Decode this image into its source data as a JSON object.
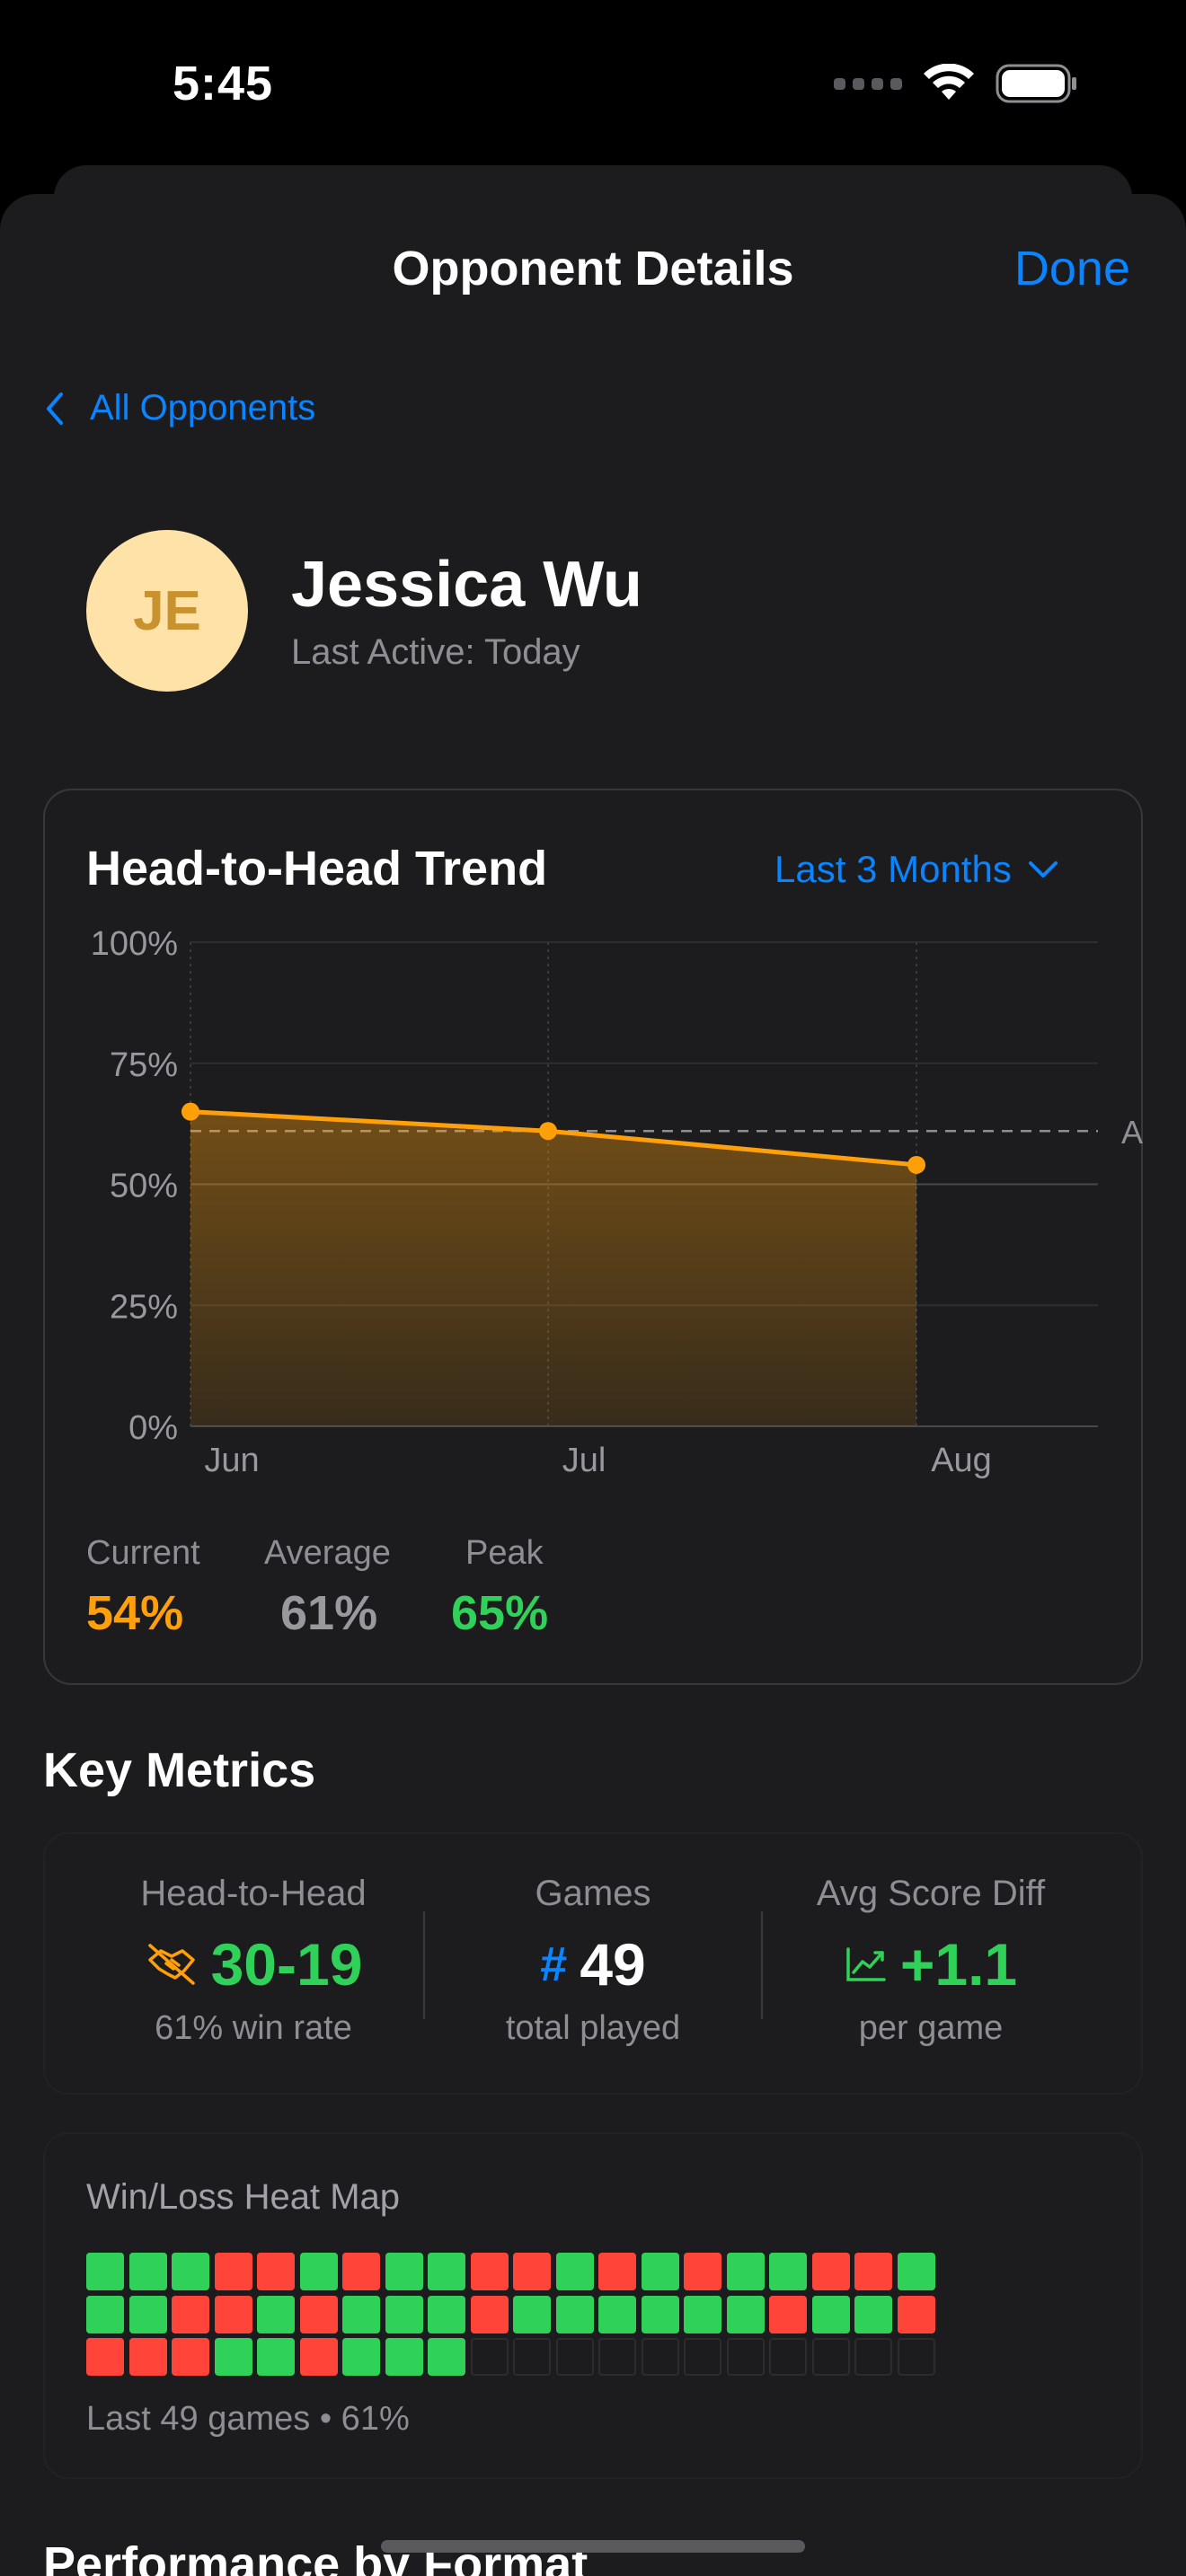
{
  "status": {
    "time": "5:45"
  },
  "nav": {
    "title": "Opponent Details",
    "done": "Done",
    "back": "All Opponents"
  },
  "profile": {
    "initials": "JE",
    "name": "Jessica Wu",
    "last_active": "Last Active: Today"
  },
  "trend": {
    "title": "Head-to-Head Trend",
    "range": "Last 3 Months",
    "avg_line_label": "A",
    "stats": [
      {
        "label": "Current",
        "value": "54%",
        "color": "#ff9f0a"
      },
      {
        "label": "Average",
        "value": "61%",
        "color": "#98989d"
      },
      {
        "label": "Peak",
        "value": "65%",
        "color": "#30d158"
      }
    ]
  },
  "chart_data": {
    "type": "area",
    "title": "Head-to-Head Trend",
    "xlabel": "",
    "ylabel": "",
    "x": [
      "Jun",
      "Jul",
      "Aug"
    ],
    "y_ticks": [
      "100%",
      "75%",
      "50%",
      "25%",
      "0%"
    ],
    "ylim": [
      0,
      100
    ],
    "series": [
      {
        "values": [
          65,
          61,
          54
        ],
        "color": "#ff9f0a"
      }
    ],
    "average": 61,
    "grid": true
  },
  "metrics": {
    "title": "Key Metrics",
    "items": [
      {
        "label": "Head-to-Head",
        "value": "30-19",
        "sub": "61% win rate",
        "icon": "handshake-slash-icon",
        "color": "#30d158"
      },
      {
        "label": "Games",
        "value": "49",
        "sub": "total played",
        "icon": "number-icon",
        "color": "#ffffff"
      },
      {
        "label": "Avg Score Diff",
        "value": "+1.1",
        "sub": "per game",
        "icon": "chart-up-icon",
        "color": "#30d158"
      }
    ]
  },
  "heatmap": {
    "title": "Win/Loss Heat Map",
    "footer": "Last 49 games • 61%",
    "results": "WWWLLWLWWLLWLWLWWLLWWWLLWLWWWLWWWWWWLWWLLLLWWLWWW",
    "slots": 60,
    "colors": {
      "win": "#30d158",
      "loss": "#ff453a"
    }
  },
  "next_section": {
    "title": "Performance by Format"
  }
}
